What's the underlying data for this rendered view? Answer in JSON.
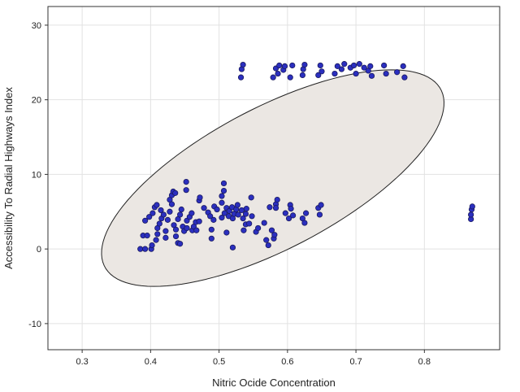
{
  "chart_data": {
    "type": "scatter",
    "xlabel": "Nitric Ocide Concentration",
    "ylabel": "Accessibility To Radial Highways Index",
    "xlim": [
      0.25,
      0.91
    ],
    "ylim": [
      -13.5,
      32.5
    ],
    "xticks": [
      0.3,
      0.4,
      0.5,
      0.6,
      0.7,
      0.8
    ],
    "yticks": [
      -10,
      0,
      10,
      20,
      30
    ],
    "xtick_labels": [
      "0.3",
      "0.4",
      "0.5",
      "0.6",
      "0.7",
      "0.8"
    ],
    "ytick_labels": [
      "-10",
      "0",
      "10",
      "20",
      "30"
    ],
    "grid": true,
    "colors": {
      "point_fill": "#2b2fbf",
      "point_stroke": "#1a1a5e",
      "ellipse_fill": "#ebe7e3",
      "ellipse_stroke": "#222222"
    },
    "ellipse": {
      "center": [
        0.5785,
        9.5
      ],
      "semi_axes_ends": [
        [
          0.7995,
          23.29
        ],
        [
          0.4612,
          14.03
        ]
      ]
    },
    "points": [
      [
        0.385,
        0
      ],
      [
        0.392,
        0
      ],
      [
        0.401,
        0
      ],
      [
        0.389,
        1.8
      ],
      [
        0.395,
        1.8
      ],
      [
        0.408,
        1.2
      ],
      [
        0.402,
        0.5
      ],
      [
        0.392,
        3.8
      ],
      [
        0.398,
        4.3
      ],
      [
        0.403,
        4.8
      ],
      [
        0.406,
        5.6
      ],
      [
        0.409,
        5.9
      ],
      [
        0.41,
        2.8
      ],
      [
        0.41,
        2.0
      ],
      [
        0.413,
        3.4
      ],
      [
        0.415,
        5.2
      ],
      [
        0.416,
        4.1
      ],
      [
        0.419,
        4.6
      ],
      [
        0.422,
        1.5
      ],
      [
        0.422,
        2.4
      ],
      [
        0.425,
        3.9
      ],
      [
        0.428,
        5.0
      ],
      [
        0.428,
        6.6
      ],
      [
        0.431,
        6.0
      ],
      [
        0.431,
        7.2
      ],
      [
        0.433,
        7.7
      ],
      [
        0.436,
        7.5
      ],
      [
        0.434,
        3.2
      ],
      [
        0.437,
        2.6
      ],
      [
        0.437,
        1.7
      ],
      [
        0.44,
        0.8
      ],
      [
        0.443,
        0.7
      ],
      [
        0.44,
        4.0
      ],
      [
        0.443,
        4.6
      ],
      [
        0.445,
        5.3
      ],
      [
        0.447,
        3.0
      ],
      [
        0.449,
        2.4
      ],
      [
        0.452,
        9.0
      ],
      [
        0.452,
        7.9
      ],
      [
        0.453,
        3.8
      ],
      [
        0.453,
        2.8
      ],
      [
        0.457,
        4.3
      ],
      [
        0.46,
        4.8
      ],
      [
        0.461,
        2.5
      ],
      [
        0.463,
        3.0
      ],
      [
        0.466,
        3.6
      ],
      [
        0.467,
        2.5
      ],
      [
        0.471,
        3.7
      ],
      [
        0.471,
        6.5
      ],
      [
        0.472,
        6.9
      ],
      [
        0.478,
        5.5
      ],
      [
        0.484,
        4.9
      ],
      [
        0.487,
        4.4
      ],
      [
        0.489,
        1.4
      ],
      [
        0.489,
        2.6
      ],
      [
        0.492,
        3.9
      ],
      [
        0.493,
        5.7
      ],
      [
        0.497,
        5.3
      ],
      [
        0.504,
        7.1
      ],
      [
        0.507,
        7.8
      ],
      [
        0.507,
        8.8
      ],
      [
        0.504,
        4.2
      ],
      [
        0.504,
        6.2
      ],
      [
        0.508,
        4.8
      ],
      [
        0.511,
        5.5
      ],
      [
        0.511,
        2.2
      ],
      [
        0.514,
        4.4
      ],
      [
        0.515,
        5.1
      ],
      [
        0.519,
        5.6
      ],
      [
        0.52,
        0.2
      ],
      [
        0.52,
        4.1
      ],
      [
        0.522,
        4.7
      ],
      [
        0.525,
        5.3
      ],
      [
        0.527,
        5.9
      ],
      [
        0.528,
        4.6
      ],
      [
        0.533,
        5.2
      ],
      [
        0.535,
        4.1
      ],
      [
        0.536,
        2.5
      ],
      [
        0.539,
        3.3
      ],
      [
        0.539,
        4.7
      ],
      [
        0.54,
        5.4
      ],
      [
        0.544,
        3.4
      ],
      [
        0.547,
        6.9
      ],
      [
        0.548,
        4.4
      ],
      [
        0.554,
        2.3
      ],
      [
        0.557,
        2.8
      ],
      [
        0.566,
        3.5
      ],
      [
        0.569,
        1.2
      ],
      [
        0.572,
        0.5
      ],
      [
        0.574,
        5.6
      ],
      [
        0.577,
        2.5
      ],
      [
        0.58,
        1.4
      ],
      [
        0.581,
        1.9
      ],
      [
        0.583,
        6.0
      ],
      [
        0.583,
        5.5
      ],
      [
        0.585,
        6.6
      ],
      [
        0.597,
        4.8
      ],
      [
        0.602,
        4.1
      ],
      [
        0.604,
        5.9
      ],
      [
        0.605,
        5.4
      ],
      [
        0.608,
        4.5
      ],
      [
        0.622,
        4.1
      ],
      [
        0.625,
        3.5
      ],
      [
        0.627,
        4.8
      ],
      [
        0.645,
        5.5
      ],
      [
        0.647,
        4.6
      ],
      [
        0.649,
        5.9
      ],
      [
        0.532,
        23
      ],
      [
        0.533,
        24.1
      ],
      [
        0.535,
        24.7
      ],
      [
        0.579,
        23
      ],
      [
        0.583,
        24.2
      ],
      [
        0.586,
        23.5
      ],
      [
        0.588,
        24.6
      ],
      [
        0.594,
        24
      ],
      [
        0.596,
        24.5
      ],
      [
        0.604,
        23
      ],
      [
        0.607,
        24.6
      ],
      [
        0.622,
        23.3
      ],
      [
        0.623,
        24.1
      ],
      [
        0.625,
        24.7
      ],
      [
        0.645,
        23.3
      ],
      [
        0.648,
        24.6
      ],
      [
        0.65,
        23.8
      ],
      [
        0.669,
        23.5
      ],
      [
        0.673,
        24.5
      ],
      [
        0.679,
        24.1
      ],
      [
        0.683,
        24.8
      ],
      [
        0.692,
        24.3
      ],
      [
        0.697,
        24.6
      ],
      [
        0.7,
        23.5
      ],
      [
        0.705,
        24.8
      ],
      [
        0.712,
        24.3
      ],
      [
        0.718,
        23.9
      ],
      [
        0.721,
        24.5
      ],
      [
        0.723,
        23.2
      ],
      [
        0.741,
        24.6
      ],
      [
        0.744,
        23.5
      ],
      [
        0.76,
        23.7
      ],
      [
        0.769,
        24.5
      ],
      [
        0.771,
        23.0
      ],
      [
        0.868,
        4
      ],
      [
        0.868,
        4.6
      ],
      [
        0.869,
        5.3
      ],
      [
        0.87,
        5.7
      ]
    ]
  }
}
